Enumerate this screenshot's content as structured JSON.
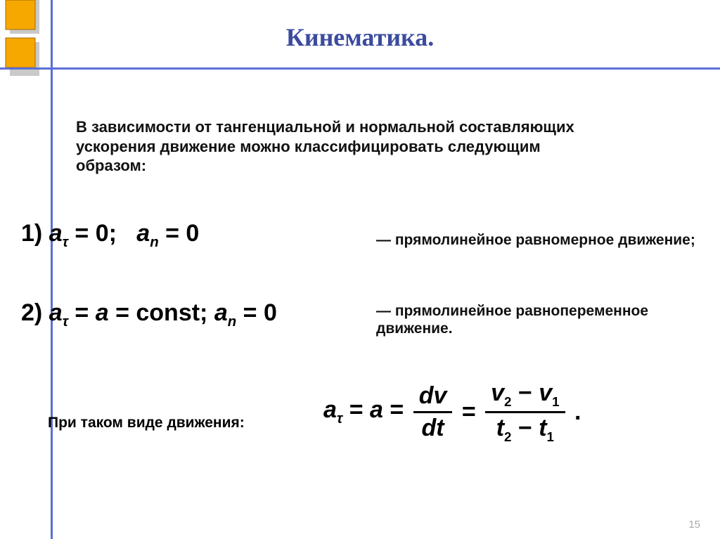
{
  "title": "Кинематика.",
  "intro": "В зависимости от тангенциальной и нормальной составляющих ускорения движение можно классифицировать следующим образом:",
  "case1": {
    "prefix": "1) ",
    "eq_html": "<span class='it'>a</span><span class='sub'>τ</span> = 0;&nbsp;&nbsp;&nbsp;<span class='it'>a</span><span class='sub it'>n</span> = 0",
    "desc": "— прямолинейное равномерное движение;"
  },
  "case2": {
    "prefix": "2) ",
    "eq_html": "<span class='it'>a</span><span class='sub'>τ</span> = <span class='it'>a</span> = const; <span class='it'>a</span><span class='sub it'>n</span> = 0",
    "desc": "— прямолинейное равнопеременное движение."
  },
  "case3": {
    "label": "При таком виде движения:",
    "eq_html": "<span class='vmid'><span class='it'>a</span><span class='sub'>τ</span> = <span class='it'>a</span> = </span><span class='frac'><span class='num'><span class='it'>dv</span></span><span class='den'><span class='it'>dt</span></span></span><span class='vmid'> = </span><span class='frac'><span class='num'><span class='it'>v</span><span class='subsmall'>2</span> − <span class='it'>v</span><span class='subsmall'>1</span></span><span class='den'><span class='it'>t</span><span class='subsmall'>2</span> − <span class='it'>t</span><span class='subsmall'>1</span></span></span><span class='vmid'> .</span>"
  },
  "page_number": "15",
  "colors": {
    "title": "#3b4ba0",
    "line": "#5a6fd6",
    "accent_fill": "#f6a800",
    "accent_stroke": "#a06a00",
    "accent_shadow": "#c9c9c9"
  }
}
